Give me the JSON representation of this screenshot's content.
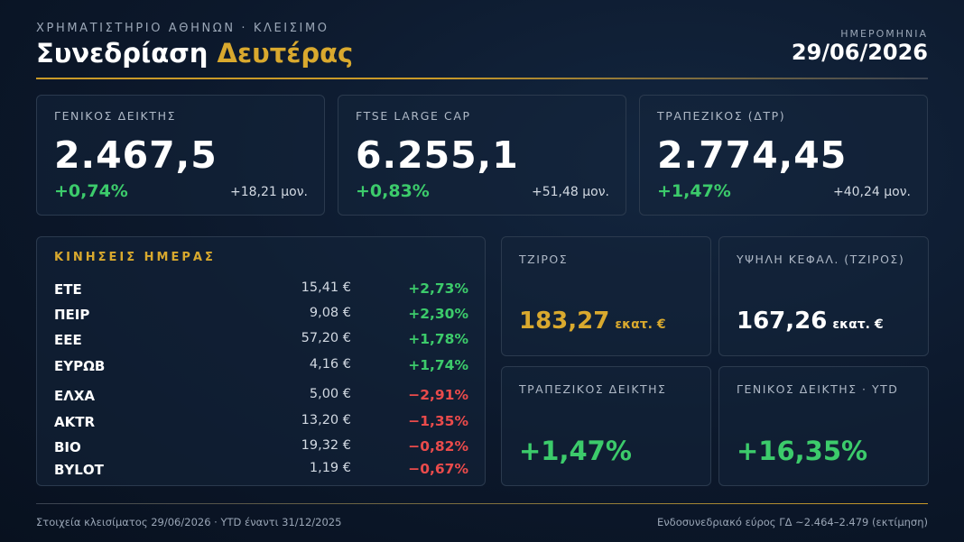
{
  "header": {
    "kicker": "ΧΡΗΜΑΤΙΣΤΗΡΙΟ ΑΘΗΝΩΝ · ΚΛΕΙΣΙΜΟ",
    "title_prefix": "Συνεδρίαση",
    "title_highlight": "Δευτέρας",
    "date_label": "ΗΜΕΡΟΜΗΝΙΑ",
    "date_value": "29/06/2026"
  },
  "indices": [
    {
      "label": "ΓΕΝΙΚΟΣ ΔΕΙΚΤΗΣ",
      "value": "2.467,5",
      "pct": "+0,74%",
      "points": "+18,21 μον."
    },
    {
      "label": "FTSE LARGE CAP",
      "value": "6.255,1",
      "pct": "+0,83%",
      "points": "+51,48 μον."
    },
    {
      "label": "ΤΡΑΠΕΖΙΚΟΣ (ΔΤΡ)",
      "value": "2.774,45",
      "pct": "+1,47%",
      "points": "+40,24 μον."
    }
  ],
  "moves": {
    "title": "ΚΙΝΗΣΕΙΣ ΗΜΕΡΑΣ",
    "rows": [
      {
        "ticker": "ΕΤΕ",
        "price": "15,41 €",
        "change": "+2,73%"
      },
      {
        "ticker": "ΠΕΙΡ",
        "price": "9,08 €",
        "change": "+2,30%"
      },
      {
        "ticker": "ΕΕΕ",
        "price": "57,20 €",
        "change": "+1,78%"
      },
      {
        "ticker": "ΕΥΡΩΒ",
        "price": "4,16 €",
        "change": "+1,74%"
      },
      {
        "ticker": "ΕΛΧΑ",
        "price": "5,00 €",
        "change": "−2,91%"
      },
      {
        "ticker": "ΑΚΤR",
        "price": "13,20 €",
        "change": "−1,35%"
      },
      {
        "ticker": "ΒΙΟ",
        "price": "19,32 €",
        "change": "−0,82%"
      },
      {
        "ticker": "ΒΥLΟΤ",
        "price": "1,19 €",
        "change": "−0,67%"
      }
    ]
  },
  "stats": {
    "turnover_label": "ΤΖΙΡΟΣ",
    "turnover_value": "183,27",
    "turnover_unit": "εκατ. €",
    "highcap_label": "ΥΨΗΛΗ ΚΕΦΑΛ. (ΤΖΙΡΟΣ)",
    "highcap_value": "167,26",
    "highcap_unit": "εκατ. €",
    "bank_label": "ΤΡΑΠΕΖΙΚΟΣ ΔΕΙΚΤΗΣ",
    "bank_value": "+1,47%",
    "ytd_label": "ΓΕΝΙΚΟΣ ΔΕΙΚΤΗΣ · YTD",
    "ytd_value": "+16,35%"
  },
  "footer": {
    "left": "Στοιχεία κλεισίματος 29/06/2026 · YTD έναντι 31/12/2025",
    "right": "Ενδοσυνεδριακό εύρος ΓΔ ~2.464–2.479 (εκτίμηση)"
  },
  "colors": {
    "accent": "#d9a92e",
    "positive": "#3ccb6b",
    "negative": "#ea4b4b",
    "background": "#0c182b"
  }
}
